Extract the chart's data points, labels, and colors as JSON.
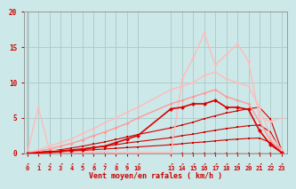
{
  "background_color": "#cce8e8",
  "grid_color": "#aacaca",
  "xlabel": "Vent moyen/en rafales ( km/h )",
  "xlabel_color": "#cc0000",
  "tick_color": "#cc0000",
  "x_ticks": [
    0,
    1,
    2,
    3,
    4,
    5,
    6,
    7,
    8,
    9,
    10,
    13,
    14,
    15,
    16,
    17,
    18,
    19,
    20,
    21,
    22,
    23
  ],
  "x_tick_labels": [
    "0",
    "1",
    "2",
    "3",
    "4",
    "5",
    "6",
    "7",
    "8",
    "9",
    "10",
    "13",
    "14",
    "15",
    "16",
    "17",
    "18",
    "19",
    "20",
    "21",
    "22",
    "23"
  ],
  "ylim": [
    0,
    20
  ],
  "yticks": [
    0,
    5,
    10,
    15,
    20
  ],
  "xlim": [
    -0.3,
    23.5
  ],
  "series": [
    {
      "comment": "flat zero line - dark red",
      "x": [
        0,
        1,
        2,
        3,
        4,
        5,
        6,
        7,
        8,
        9,
        10,
        13,
        14,
        15,
        16,
        17,
        18,
        19,
        20,
        21,
        22,
        23
      ],
      "y": [
        0,
        0,
        0,
        0,
        0,
        0,
        0,
        0,
        0,
        0,
        0,
        0,
        0,
        0,
        0,
        0,
        0,
        0,
        0,
        0,
        0,
        0
      ],
      "color": "#cc0000",
      "lw": 1.0,
      "marker": "s",
      "ms": 1.5
    },
    {
      "comment": "lowest slope line - dark red thin",
      "x": [
        0,
        1,
        2,
        3,
        4,
        5,
        6,
        7,
        8,
        9,
        10,
        13,
        14,
        15,
        16,
        17,
        18,
        19,
        20,
        21,
        22,
        23
      ],
      "y": [
        0,
        0.05,
        0.1,
        0.2,
        0.3,
        0.4,
        0.5,
        0.6,
        0.7,
        0.8,
        0.9,
        1.2,
        1.35,
        1.5,
        1.6,
        1.75,
        1.9,
        2.0,
        2.1,
        2.15,
        1.5,
        0.1
      ],
      "color": "#cc0000",
      "lw": 0.8,
      "marker": "s",
      "ms": 1.5
    },
    {
      "comment": "second slope line - dark red thin",
      "x": [
        0,
        1,
        2,
        3,
        4,
        5,
        6,
        7,
        8,
        9,
        10,
        13,
        14,
        15,
        16,
        17,
        18,
        19,
        20,
        21,
        22,
        23
      ],
      "y": [
        0,
        0.1,
        0.2,
        0.35,
        0.5,
        0.65,
        0.85,
        1.0,
        1.2,
        1.45,
        1.65,
        2.2,
        2.5,
        2.7,
        3.0,
        3.25,
        3.5,
        3.7,
        3.9,
        4.0,
        3.0,
        0.2
      ],
      "color": "#cc0000",
      "lw": 0.8,
      "marker": "s",
      "ms": 1.5
    },
    {
      "comment": "third slope line - dark red thin",
      "x": [
        0,
        1,
        2,
        3,
        4,
        5,
        6,
        7,
        8,
        9,
        10,
        13,
        14,
        15,
        16,
        17,
        18,
        19,
        20,
        21,
        22,
        23
      ],
      "y": [
        0,
        0.15,
        0.3,
        0.5,
        0.75,
        1.0,
        1.3,
        1.6,
        1.95,
        2.3,
        2.65,
        3.6,
        4.0,
        4.4,
        4.9,
        5.3,
        5.7,
        6.0,
        6.3,
        6.5,
        4.8,
        0.4
      ],
      "color": "#cc0000",
      "lw": 0.8,
      "marker": "s",
      "ms": 1.5
    },
    {
      "comment": "light pink peaky line - very light",
      "x": [
        0,
        1,
        2,
        3,
        4,
        5,
        6,
        7,
        8,
        9,
        10,
        13,
        14,
        15,
        16,
        17,
        18,
        19,
        20,
        21,
        22,
        23
      ],
      "y": [
        0,
        6.5,
        0.5,
        0.3,
        0.2,
        0.2,
        0.2,
        0.2,
        0.1,
        0.1,
        0.1,
        0.1,
        10.5,
        13.5,
        17.0,
        12.5,
        14.0,
        15.5,
        13.0,
        5.0,
        4.5,
        5.0
      ],
      "color": "#ffbbbb",
      "lw": 1.0,
      "marker": "D",
      "ms": 2.0
    },
    {
      "comment": "medium pink ascending then down - medium",
      "x": [
        0,
        1,
        2,
        3,
        4,
        5,
        6,
        7,
        8,
        9,
        10,
        13,
        14,
        15,
        16,
        17,
        18,
        19,
        20,
        21,
        22,
        23
      ],
      "y": [
        0,
        0.3,
        0.6,
        1.0,
        1.4,
        1.9,
        2.5,
        3.0,
        3.6,
        4.2,
        5.0,
        7.0,
        7.5,
        8.0,
        8.5,
        9.0,
        8.0,
        7.5,
        7.0,
        4.5,
        1.8,
        0.3
      ],
      "color": "#ff9999",
      "lw": 1.0,
      "marker": "D",
      "ms": 2.0
    },
    {
      "comment": "medium-light ascending then down",
      "x": [
        0,
        1,
        2,
        3,
        4,
        5,
        6,
        7,
        8,
        9,
        10,
        13,
        14,
        15,
        16,
        17,
        18,
        19,
        20,
        21,
        22,
        23
      ],
      "y": [
        0,
        0.5,
        1.0,
        1.5,
        2.0,
        2.8,
        3.5,
        4.3,
        5.0,
        5.8,
        6.5,
        9.0,
        9.5,
        10.0,
        11.0,
        11.5,
        10.5,
        10.0,
        9.5,
        6.5,
        2.5,
        0.5
      ],
      "color": "#ffbbbb",
      "lw": 1.0,
      "marker": "D",
      "ms": 2.0
    },
    {
      "comment": "dark red peaky - bright",
      "x": [
        0,
        1,
        2,
        3,
        4,
        5,
        6,
        7,
        8,
        9,
        10,
        13,
        14,
        15,
        16,
        17,
        18,
        19,
        20,
        21,
        22,
        23
      ],
      "y": [
        0,
        0.1,
        0.2,
        0.3,
        0.4,
        0.5,
        0.8,
        1.0,
        1.5,
        2.0,
        2.5,
        6.3,
        6.5,
        7.0,
        7.0,
        7.5,
        6.5,
        6.5,
        6.2,
        3.2,
        1.2,
        0.1
      ],
      "color": "#dd0000",
      "lw": 1.2,
      "marker": "D",
      "ms": 2.5
    }
  ]
}
